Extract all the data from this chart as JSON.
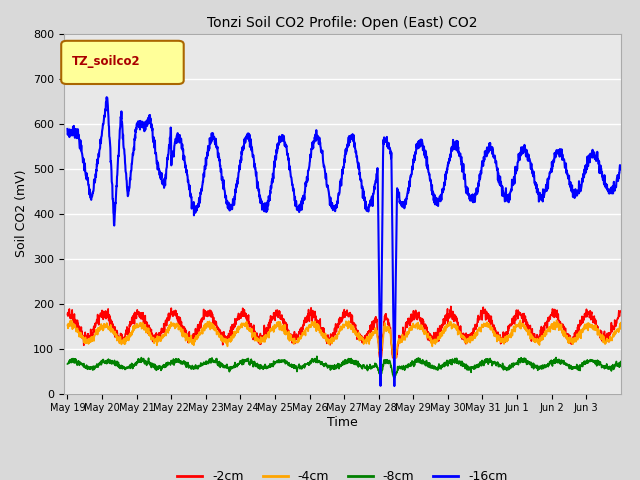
{
  "title": "Tonzi Soil CO2 Profile: Open (East) CO2",
  "ylabel": "Soil CO2 (mV)",
  "xlabel": "Time",
  "legend_label": "TZ_soilco2",
  "ylim": [
    0,
    800
  ],
  "yticks": [
    0,
    100,
    200,
    300,
    400,
    500,
    600,
    700,
    800
  ],
  "series": {
    "-2cm": {
      "color": "red",
      "lw": 1.2
    },
    "-4cm": {
      "color": "orange",
      "lw": 1.2
    },
    "-8cm": {
      "color": "green",
      "lw": 1.2
    },
    "-16cm": {
      "color": "blue",
      "lw": 1.5
    }
  },
  "bg_color": "#d9d9d9",
  "plot_bg": "#e8e8e8",
  "figsize": [
    6.4,
    4.8
  ],
  "dpi": 100,
  "xtick_labels": [
    "May 19",
    "May 20",
    "May 21",
    "May 22",
    "May 23",
    "May 24",
    "May 25",
    "May 26",
    "May 27",
    "May 28",
    "May 29",
    "May 30",
    "May 31",
    "Jun 1",
    "Jun 2",
    "Jun 3"
  ],
  "spike_days": [
    9.05,
    9.45
  ],
  "blue_base": 500,
  "blue_amp": 80,
  "red_base": 150,
  "red_amp": 30,
  "orange_base": 135,
  "orange_amp": 20,
  "green_base": 65,
  "green_amp": 8
}
